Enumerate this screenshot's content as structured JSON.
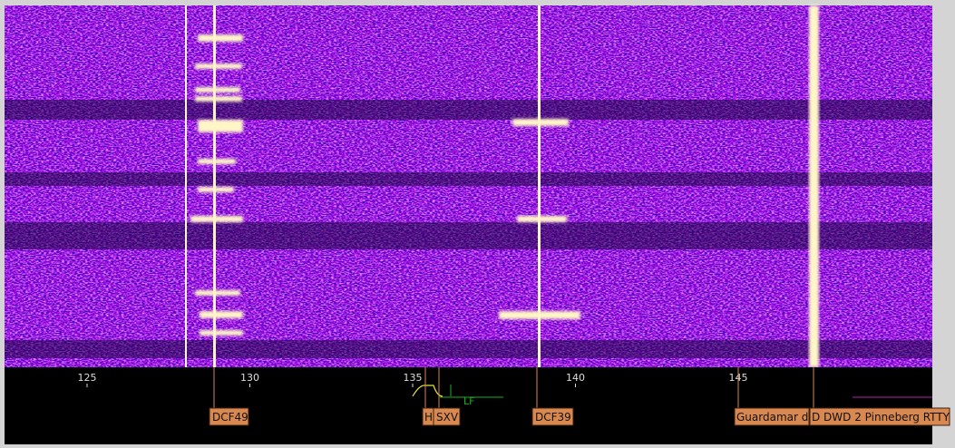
{
  "axis": {
    "ticks": [
      125,
      130,
      135,
      140,
      145
    ]
  },
  "stations": [
    "DCF49",
    "HH",
    "SXV",
    "DCF39",
    "Guardamar d",
    "D DWD 2 Pinneberg RTTY"
  ],
  "passband": {
    "label": "LF"
  }
}
